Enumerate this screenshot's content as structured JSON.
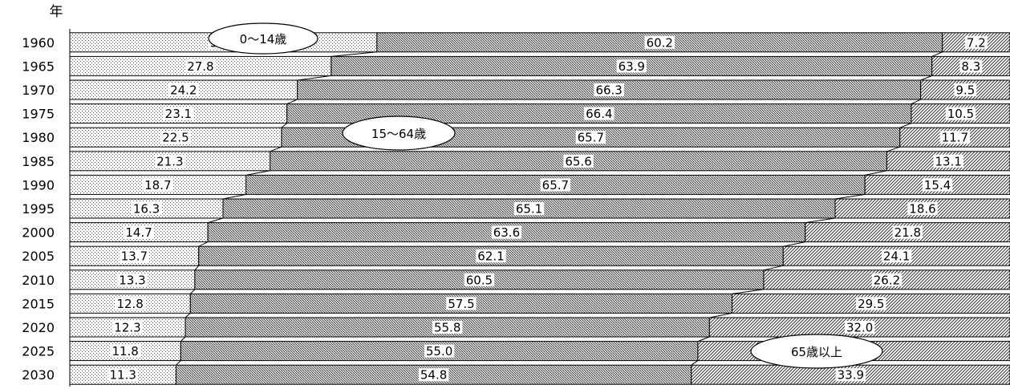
{
  "chart_data": {
    "type": "bar",
    "stacked": "100%",
    "orientation": "horizontal",
    "ylabel": "年",
    "categories": [
      "1960",
      "1965",
      "1970",
      "1975",
      "1980",
      "1985",
      "1990",
      "1995",
      "2000",
      "2005",
      "2010",
      "2015",
      "2020",
      "2025",
      "2030"
    ],
    "series": [
      {
        "name": "0〜14歳",
        "values": [
          32.7,
          27.8,
          24.2,
          23.1,
          22.5,
          21.3,
          18.7,
          16.3,
          14.7,
          13.7,
          13.3,
          12.8,
          12.3,
          11.8,
          11.3
        ]
      },
      {
        "name": "15〜64歳",
        "values": [
          60.2,
          63.9,
          66.3,
          66.4,
          65.7,
          65.6,
          65.7,
          65.1,
          63.6,
          62.1,
          60.5,
          57.5,
          55.8,
          55.0,
          54.8
        ]
      },
      {
        "name": "65歳以上",
        "values": [
          7.2,
          8.3,
          9.5,
          10.5,
          11.7,
          13.1,
          15.4,
          18.6,
          21.8,
          24.1,
          26.2,
          29.5,
          32.0,
          33.2,
          33.9
        ]
      }
    ],
    "value_labels": [
      [
        "32.7",
        "60.2",
        "7.2"
      ],
      [
        "27.8",
        "63.9",
        "8.3"
      ],
      [
        "24.2",
        "66.3",
        "9.5"
      ],
      [
        "23.1",
        "66.4",
        "10.5"
      ],
      [
        "22.5",
        "65.7",
        "11.7"
      ],
      [
        "21.3",
        "65.6",
        "13.1"
      ],
      [
        "18.7",
        "65.7",
        "15.4"
      ],
      [
        "16.3",
        "65.1",
        "18.6"
      ],
      [
        "14.7",
        "63.6",
        "21.8"
      ],
      [
        "13.7",
        "62.1",
        "24.1"
      ],
      [
        "13.3",
        "60.5",
        "26.2"
      ],
      [
        "12.8",
        "57.5",
        "29.5"
      ],
      [
        "12.3",
        "55.8",
        "32.0"
      ],
      [
        "11.8",
        "55.0",
        "33.2"
      ],
      [
        "11.3",
        "54.8",
        "33.9"
      ]
    ],
    "legend": "callouts"
  }
}
